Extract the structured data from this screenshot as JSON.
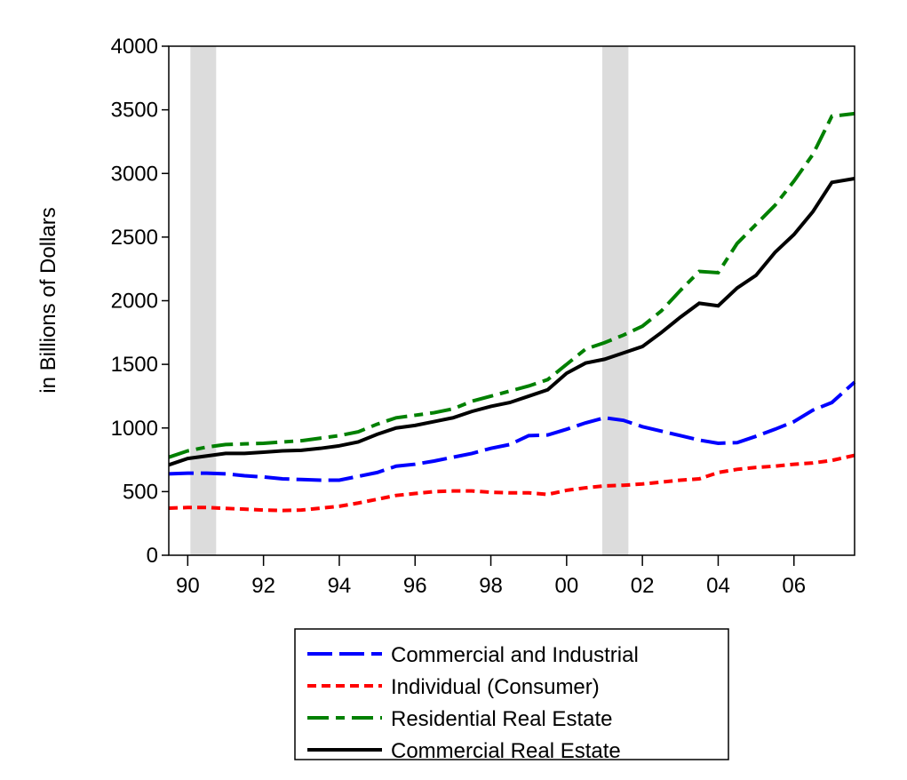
{
  "chart_data": {
    "type": "line",
    "y_label": "in Billions of Dollars",
    "xlim": [
      1989.5,
      2007.6
    ],
    "ylim": [
      0,
      4000
    ],
    "yticks": [
      0,
      500,
      1000,
      1500,
      2000,
      2500,
      3000,
      3500,
      4000
    ],
    "xticks": [
      {
        "value": 1990,
        "label": "90"
      },
      {
        "value": 1992,
        "label": "92"
      },
      {
        "value": 1994,
        "label": "94"
      },
      {
        "value": 1996,
        "label": "96"
      },
      {
        "value": 1998,
        "label": "98"
      },
      {
        "value": 2000,
        "label": "00"
      },
      {
        "value": 2002,
        "label": "02"
      },
      {
        "value": 2004,
        "label": "04"
      },
      {
        "value": 2006,
        "label": "06"
      }
    ],
    "shaded_regions": [
      [
        1990.07,
        1990.75
      ],
      [
        2000.94,
        2001.63
      ]
    ],
    "shade_color": "#dcdcdc",
    "x": [
      1989.5,
      1990,
      1990.5,
      1991,
      1991.5,
      1992,
      1992.5,
      1993,
      1993.5,
      1994,
      1994.5,
      1995,
      1995.5,
      1996,
      1996.5,
      1997,
      1997.5,
      1998,
      1998.5,
      1999,
      1999.5,
      2000,
      2000.5,
      2001,
      2001.5,
      2002,
      2002.5,
      2003,
      2003.5,
      2004,
      2004.5,
      2005,
      2005.5,
      2006,
      2006.5,
      2007,
      2007.6
    ],
    "series": [
      {
        "name": "Commercial and Industrial",
        "color": "#0000ff",
        "values": [
          640,
          645,
          645,
          640,
          625,
          615,
          600,
          595,
          590,
          590,
          620,
          650,
          700,
          715,
          740,
          770,
          800,
          840,
          870,
          940,
          945,
          990,
          1040,
          1080,
          1060,
          1010,
          975,
          940,
          905,
          880,
          885,
          935,
          990,
          1050,
          1140,
          1200,
          1360
        ]
      },
      {
        "name": "Individual (Consumer)",
        "color": "#ff0000",
        "values": [
          370,
          375,
          375,
          368,
          362,
          355,
          352,
          355,
          370,
          385,
          410,
          440,
          470,
          485,
          500,
          505,
          505,
          495,
          490,
          490,
          478,
          510,
          530,
          545,
          550,
          560,
          575,
          590,
          600,
          650,
          675,
          690,
          700,
          715,
          725,
          745,
          785
        ]
      },
      {
        "name": "Residential Real Estate",
        "color": "#008000",
        "values": [
          770,
          820,
          850,
          870,
          875,
          880,
          890,
          900,
          920,
          940,
          970,
          1030,
          1080,
          1100,
          1120,
          1150,
          1210,
          1250,
          1290,
          1330,
          1380,
          1500,
          1620,
          1670,
          1730,
          1800,
          1920,
          2080,
          2230,
          2220,
          2450,
          2600,
          2750,
          2940,
          3150,
          3450,
          3470
        ]
      },
      {
        "name": "Commercial Real Estate",
        "color": "#000000",
        "values": [
          710,
          760,
          780,
          800,
          800,
          810,
          820,
          825,
          840,
          860,
          890,
          950,
          1000,
          1020,
          1050,
          1080,
          1130,
          1170,
          1200,
          1250,
          1300,
          1430,
          1510,
          1540,
          1590,
          1640,
          1750,
          1870,
          1980,
          1960,
          2100,
          2200,
          2380,
          2520,
          2700,
          2930,
          2960
        ]
      }
    ]
  }
}
